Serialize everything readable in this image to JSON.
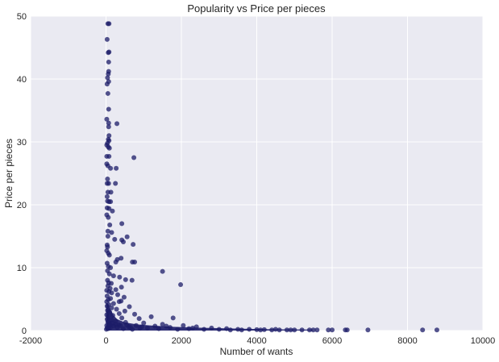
{
  "chart_data": {
    "type": "scatter",
    "title": "Popularity vs Price per pieces",
    "xlabel": "Number of wants",
    "ylabel": "Price per pieces",
    "xlim": [
      -2000,
      10000
    ],
    "ylim": [
      0,
      50
    ],
    "xticks": [
      "-2000",
      "0",
      "2000",
      "4000",
      "6000",
      "8000",
      "10000"
    ],
    "yticks": [
      "0",
      "10",
      "20",
      "30",
      "40",
      "50"
    ],
    "xtick_values": [
      -2000,
      0,
      2000,
      4000,
      6000,
      8000,
      10000
    ],
    "ytick_values": [
      0,
      10,
      20,
      30,
      40,
      50
    ],
    "grid": true,
    "colors": {
      "background": "#EAEAF2",
      "grid": "#FFFFFF",
      "marker": "#1C1C68"
    },
    "series": [
      {
        "points": [
          [
            50,
            48.8
          ],
          [
            80,
            48.8
          ],
          [
            30,
            46.3
          ],
          [
            60,
            44.2
          ],
          [
            80,
            44.3
          ],
          [
            70,
            42.7
          ],
          [
            40,
            40.2
          ],
          [
            60,
            40.8
          ],
          [
            70,
            41.2
          ],
          [
            30,
            39.2
          ],
          [
            70,
            39.6
          ],
          [
            50,
            37.7
          ],
          [
            70,
            35.2
          ],
          [
            20,
            33.6
          ],
          [
            70,
            33.0
          ],
          [
            290,
            32.9
          ],
          [
            70,
            32.4
          ],
          [
            80,
            31.0
          ],
          [
            60,
            30.4
          ],
          [
            80,
            30.2
          ],
          [
            40,
            29.8
          ],
          [
            20,
            29.5
          ],
          [
            60,
            29.2
          ],
          [
            90,
            29.0
          ],
          [
            20,
            27.7
          ],
          [
            80,
            27.7
          ],
          [
            740,
            27.5
          ],
          [
            20,
            26.5
          ],
          [
            50,
            26.2
          ],
          [
            120,
            25.8
          ],
          [
            270,
            25.8
          ],
          [
            40,
            24.1
          ],
          [
            30,
            23.4
          ],
          [
            70,
            23.4
          ],
          [
            250,
            23.4
          ],
          [
            50,
            22.0
          ],
          [
            130,
            22.0
          ],
          [
            30,
            21.3
          ],
          [
            40,
            20.6
          ],
          [
            80,
            20.5
          ],
          [
            120,
            20.5
          ],
          [
            30,
            19.5
          ],
          [
            80,
            19.4
          ],
          [
            170,
            19.0
          ],
          [
            20,
            18.4
          ],
          [
            60,
            18.0
          ],
          [
            420,
            17.0
          ],
          [
            100,
            16.8
          ],
          [
            50,
            15.8
          ],
          [
            150,
            15.6
          ],
          [
            50,
            15.0
          ],
          [
            560,
            14.9
          ],
          [
            230,
            14.5
          ],
          [
            420,
            14.4
          ],
          [
            460,
            14.1
          ],
          [
            720,
            13.7
          ],
          [
            30,
            13.6
          ],
          [
            40,
            13.3
          ],
          [
            20,
            12.7
          ],
          [
            60,
            12.3
          ],
          [
            90,
            12.0
          ],
          [
            300,
            11.3
          ],
          [
            400,
            11.5
          ],
          [
            260,
            10.9
          ],
          [
            700,
            10.9
          ],
          [
            760,
            10.9
          ],
          [
            30,
            10.7
          ],
          [
            60,
            10.2
          ],
          [
            120,
            10.0
          ],
          [
            1500,
            9.4
          ],
          [
            40,
            9.5
          ],
          [
            90,
            9.0
          ],
          [
            200,
            8.7
          ],
          [
            360,
            8.5
          ],
          [
            520,
            8.1
          ],
          [
            690,
            8.0
          ],
          [
            40,
            8.0
          ],
          [
            70,
            7.6
          ],
          [
            140,
            7.5
          ],
          [
            1980,
            7.3
          ],
          [
            410,
            6.9
          ],
          [
            50,
            7.1
          ],
          [
            110,
            6.7
          ],
          [
            20,
            6.4
          ],
          [
            80,
            6.2
          ],
          [
            260,
            6.5
          ],
          [
            150,
            6.0
          ],
          [
            310,
            5.7
          ],
          [
            30,
            5.5
          ],
          [
            120,
            5.1
          ],
          [
            480,
            5.3
          ],
          [
            60,
            4.9
          ],
          [
            20,
            4.6
          ],
          [
            350,
            4.6
          ],
          [
            400,
            4.7
          ],
          [
            200,
            4.3
          ],
          [
            80,
            4.1
          ],
          [
            30,
            3.9
          ],
          [
            150,
            3.6
          ],
          [
            620,
            3.8
          ],
          [
            280,
            3.4
          ],
          [
            40,
            3.2
          ],
          [
            500,
            3.1
          ],
          [
            100,
            2.9
          ],
          [
            350,
            2.7
          ],
          [
            20,
            2.5
          ],
          [
            760,
            2.6
          ],
          [
            180,
            2.4
          ],
          [
            60,
            2.2
          ],
          [
            1200,
            2.2
          ],
          [
            420,
            2.0
          ],
          [
            30,
            1.8
          ],
          [
            880,
            1.9
          ],
          [
            150,
            1.7
          ],
          [
            1780,
            2.0
          ],
          [
            260,
            1.5
          ],
          [
            50,
            1.4
          ],
          [
            520,
            1.3
          ],
          [
            1000,
            1.2
          ],
          [
            90,
            1.1
          ],
          [
            1500,
            1.0
          ],
          [
            340,
            0.9
          ],
          [
            2050,
            0.8
          ],
          [
            20,
            0.8
          ],
          [
            1300,
            0.7
          ],
          [
            600,
            0.6
          ],
          [
            2400,
            0.6
          ],
          [
            120,
            0.5
          ],
          [
            1700,
            0.5
          ],
          [
            2800,
            0.4
          ],
          [
            900,
            0.4
          ],
          [
            3200,
            0.3
          ],
          [
            60,
            0.3
          ],
          [
            2200,
            0.3
          ],
          [
            3500,
            0.2
          ],
          [
            3800,
            0.2
          ],
          [
            4000,
            0.15
          ],
          [
            4200,
            0.15
          ],
          [
            4400,
            0.1
          ],
          [
            4600,
            0.1
          ],
          [
            4800,
            0.1
          ],
          [
            5000,
            0.1
          ],
          [
            5200,
            0.1
          ],
          [
            5400,
            0.1
          ],
          [
            5600,
            0.1
          ],
          [
            6000,
            0.1
          ],
          [
            6400,
            0.1
          ],
          [
            6950,
            0.1
          ],
          [
            8400,
            0.1
          ],
          [
            8780,
            0.1
          ],
          [
            10,
            0.2
          ],
          [
            30,
            0.4
          ],
          [
            70,
            0.6
          ],
          [
            110,
            0.9
          ],
          [
            160,
            1.2
          ],
          [
            210,
            0.7
          ],
          [
            250,
            1.0
          ],
          [
            300,
            0.5
          ],
          [
            380,
            0.8
          ],
          [
            460,
            0.3
          ],
          [
            550,
            0.9
          ],
          [
            650,
            0.5
          ],
          [
            700,
            0.2
          ],
          [
            800,
            0.8
          ],
          [
            950,
            0.6
          ],
          [
            1100,
            0.4
          ],
          [
            1400,
            0.3
          ],
          [
            1600,
            0.7
          ],
          [
            1900,
            0.2
          ],
          [
            2300,
            0.4
          ],
          [
            2600,
            0.2
          ],
          [
            3000,
            0.2
          ],
          [
            3300,
            0.1
          ],
          [
            3600,
            0.1
          ],
          [
            4100,
            0.1
          ],
          [
            4500,
            0.2
          ],
          [
            4900,
            0.1
          ],
          [
            5500,
            0.1
          ],
          [
            5900,
            0.1
          ],
          [
            6350,
            0.1
          ]
        ]
      }
    ]
  }
}
